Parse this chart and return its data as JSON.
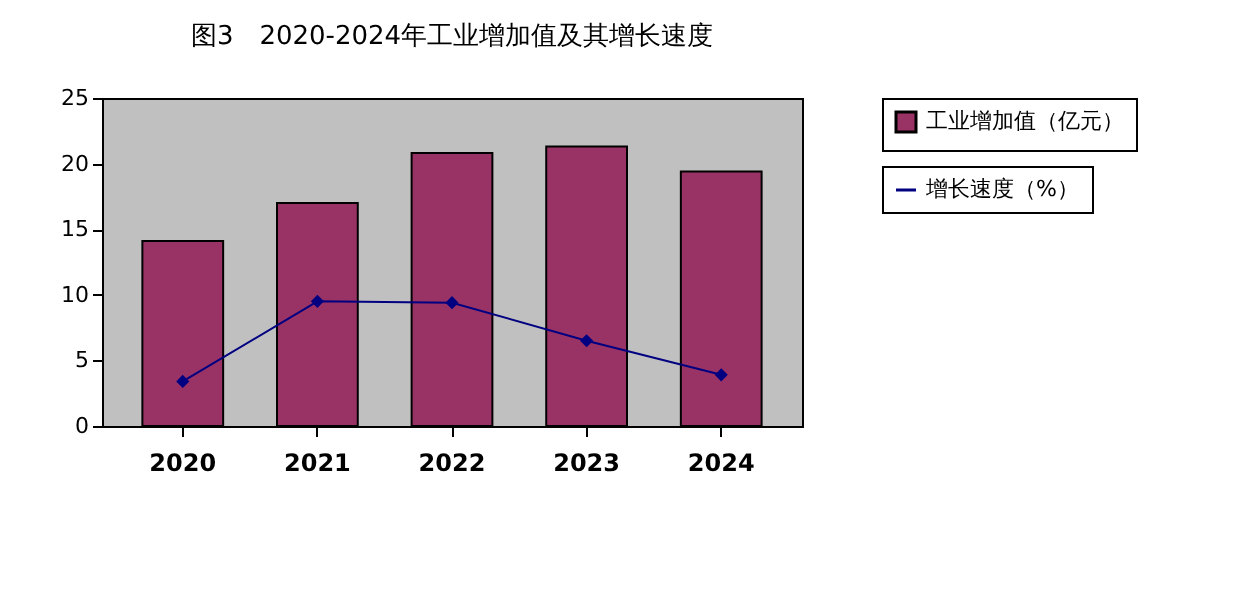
{
  "chart_data": {
    "type": "bar",
    "title": "图3　2020-2024年工业增加值及其增长速度",
    "categories": [
      "2020",
      "2021",
      "2022",
      "2023",
      "2024"
    ],
    "series": [
      {
        "name": "工业增加值（亿元）",
        "color": "#993366",
        "values": [
          14.1,
          17.0,
          20.8,
          21.3,
          19.4
        ]
      },
      {
        "name": "增长速度（%）",
        "type": "line",
        "color": "#000080",
        "marker": "diamond",
        "values": [
          3.4,
          9.5,
          9.4,
          6.5,
          3.9
        ]
      }
    ],
    "ylim": [
      0,
      25
    ],
    "yticks": [
      0,
      5,
      10,
      15,
      20,
      25
    ],
    "grid": false,
    "legend": "right"
  }
}
